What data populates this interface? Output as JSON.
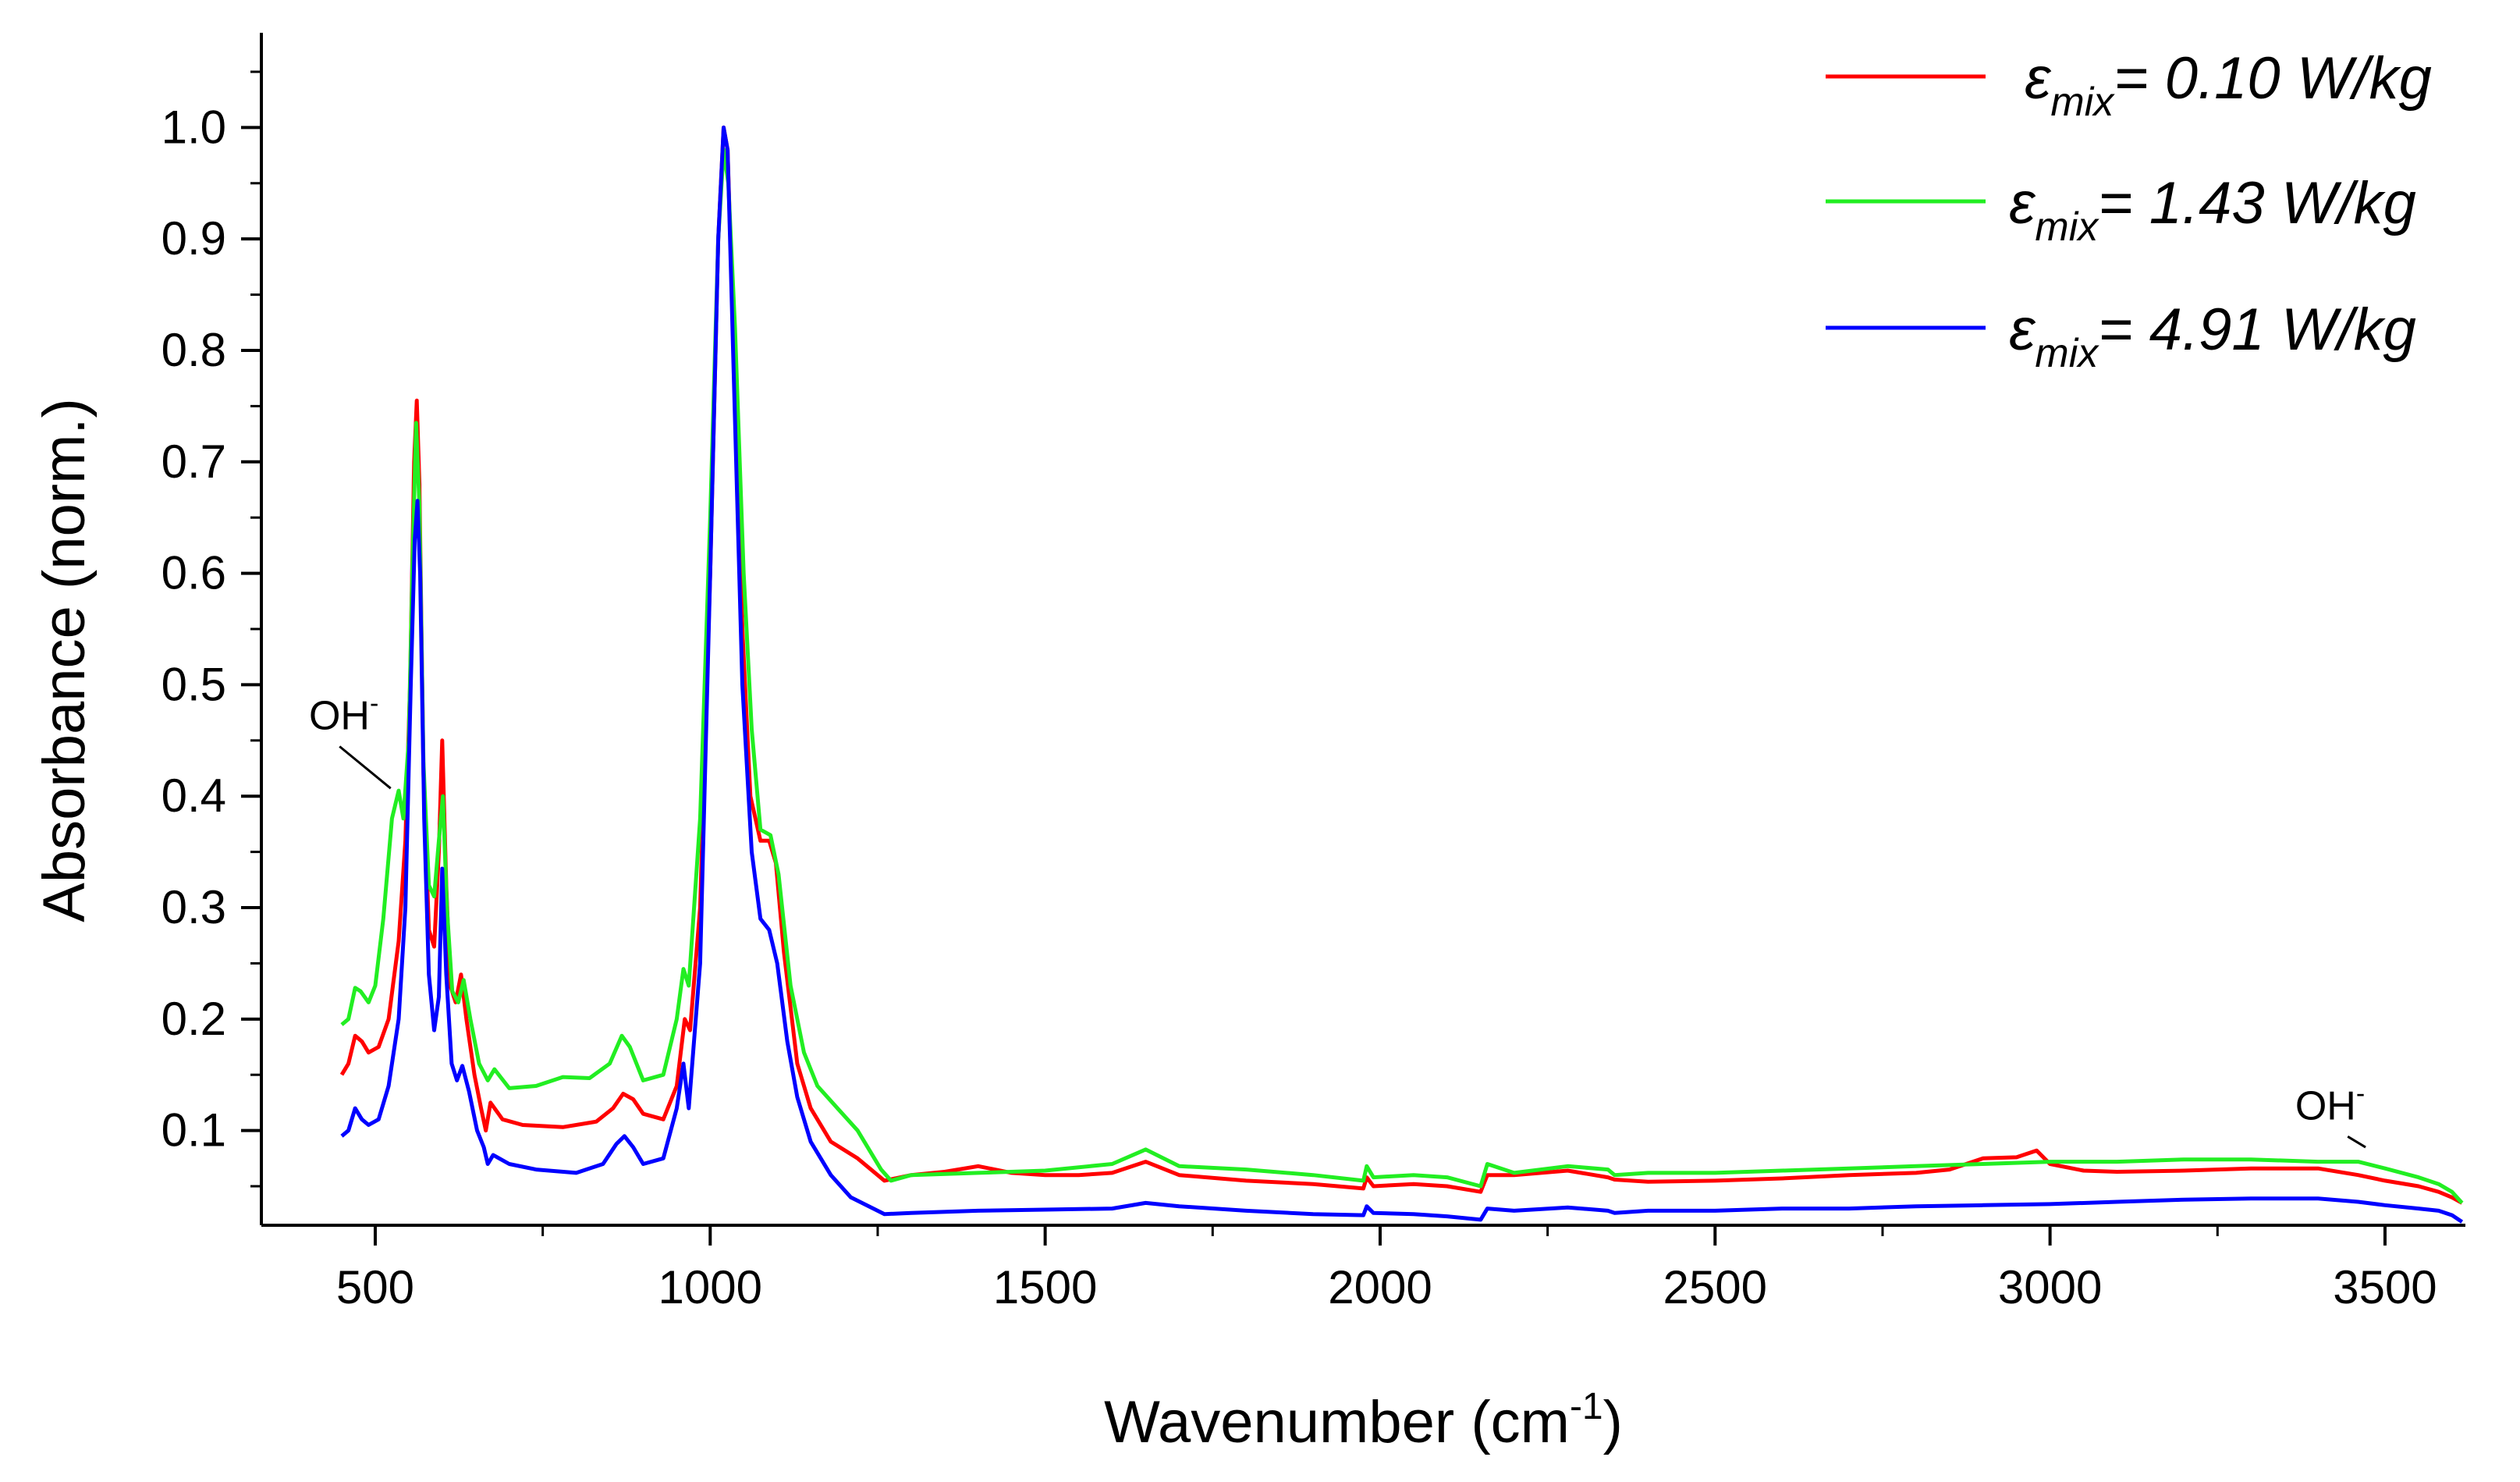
{
  "chart_data": {
    "type": "line",
    "xlabel": "Wavenumber (cm",
    "xlabel_sup": "-1",
    "xlabel_suffix": ")",
    "ylabel": "Absorbance (norm.)",
    "xlim": [
      330,
      3620
    ],
    "ylim": [
      0.015,
      1.085
    ],
    "x_ticks": [
      500,
      1000,
      1500,
      2000,
      2500,
      3000,
      3500
    ],
    "y_ticks": [
      0.1,
      0.2,
      0.3,
      0.4,
      0.5,
      0.6,
      0.7,
      0.8,
      0.9,
      1.0
    ],
    "x_tick_labels": [
      "500",
      "1000",
      "1500",
      "2000",
      "2500",
      "3000",
      "3500"
    ],
    "y_tick_labels": [
      "0.1",
      "0.2",
      "0.3",
      "0.4",
      "0.5",
      "0.6",
      "0.7",
      "0.8",
      "0.9",
      "1.0"
    ],
    "grid": false,
    "legend_position": "top-right",
    "series": [
      {
        "name": "= 0.10 W/kg",
        "legend_symbol": "ε",
        "legend_sub": "mix",
        "color": "#ff0000",
        "points": [
          [
            450,
            0.15
          ],
          [
            460,
            0.16
          ],
          [
            470,
            0.185
          ],
          [
            480,
            0.18
          ],
          [
            490,
            0.17
          ],
          [
            505,
            0.175
          ],
          [
            520,
            0.2
          ],
          [
            535,
            0.27
          ],
          [
            545,
            0.36
          ],
          [
            552,
            0.5
          ],
          [
            558,
            0.7
          ],
          [
            562,
            0.755
          ],
          [
            566,
            0.68
          ],
          [
            572,
            0.42
          ],
          [
            580,
            0.28
          ],
          [
            588,
            0.265
          ],
          [
            595,
            0.35
          ],
          [
            600,
            0.45
          ],
          [
            606,
            0.32
          ],
          [
            612,
            0.23
          ],
          [
            620,
            0.215
          ],
          [
            628,
            0.24
          ],
          [
            636,
            0.2
          ],
          [
            648,
            0.15
          ],
          [
            658,
            0.12
          ],
          [
            665,
            0.1
          ],
          [
            672,
            0.125
          ],
          [
            690,
            0.11
          ],
          [
            720,
            0.105
          ],
          [
            780,
            0.103
          ],
          [
            830,
            0.108
          ],
          [
            855,
            0.12
          ],
          [
            870,
            0.133
          ],
          [
            885,
            0.128
          ],
          [
            900,
            0.115
          ],
          [
            930,
            0.11
          ],
          [
            950,
            0.14
          ],
          [
            962,
            0.2
          ],
          [
            970,
            0.19
          ],
          [
            985,
            0.3
          ],
          [
            1000,
            0.6
          ],
          [
            1012,
            0.9
          ],
          [
            1020,
            1.0
          ],
          [
            1026,
            0.98
          ],
          [
            1035,
            0.8
          ],
          [
            1048,
            0.55
          ],
          [
            1060,
            0.4
          ],
          [
            1075,
            0.36
          ],
          [
            1088,
            0.36
          ],
          [
            1098,
            0.34
          ],
          [
            1110,
            0.26
          ],
          [
            1130,
            0.16
          ],
          [
            1150,
            0.12
          ],
          [
            1180,
            0.09
          ],
          [
            1220,
            0.075
          ],
          [
            1260,
            0.055
          ],
          [
            1300,
            0.06
          ],
          [
            1350,
            0.063
          ],
          [
            1400,
            0.068
          ],
          [
            1450,
            0.062
          ],
          [
            1500,
            0.06
          ],
          [
            1550,
            0.06
          ],
          [
            1600,
            0.062
          ],
          [
            1650,
            0.072
          ],
          [
            1700,
            0.06
          ],
          [
            1800,
            0.055
          ],
          [
            1900,
            0.052
          ],
          [
            1975,
            0.048
          ],
          [
            1980,
            0.058
          ],
          [
            1990,
            0.05
          ],
          [
            2050,
            0.052
          ],
          [
            2100,
            0.05
          ],
          [
            2150,
            0.045
          ],
          [
            2160,
            0.06
          ],
          [
            2200,
            0.06
          ],
          [
            2280,
            0.064
          ],
          [
            2340,
            0.058
          ],
          [
            2350,
            0.056
          ],
          [
            2400,
            0.054
          ],
          [
            2500,
            0.055
          ],
          [
            2600,
            0.057
          ],
          [
            2700,
            0.06
          ],
          [
            2800,
            0.062
          ],
          [
            2850,
            0.065
          ],
          [
            2900,
            0.075
          ],
          [
            2950,
            0.076
          ],
          [
            2980,
            0.082
          ],
          [
            3000,
            0.07
          ],
          [
            3050,
            0.064
          ],
          [
            3100,
            0.063
          ],
          [
            3200,
            0.064
          ],
          [
            3300,
            0.066
          ],
          [
            3400,
            0.066
          ],
          [
            3460,
            0.06
          ],
          [
            3500,
            0.055
          ],
          [
            3550,
            0.05
          ],
          [
            3580,
            0.045
          ],
          [
            3600,
            0.04
          ],
          [
            3615,
            0.035
          ]
        ]
      },
      {
        "name": "= 1.43 W/kg",
        "legend_symbol": "ε",
        "legend_sub": "mix",
        "color": "#22ee22",
        "points": [
          [
            450,
            0.195
          ],
          [
            460,
            0.2
          ],
          [
            470,
            0.228
          ],
          [
            478,
            0.225
          ],
          [
            490,
            0.215
          ],
          [
            500,
            0.23
          ],
          [
            512,
            0.29
          ],
          [
            525,
            0.38
          ],
          [
            535,
            0.405
          ],
          [
            542,
            0.38
          ],
          [
            550,
            0.45
          ],
          [
            556,
            0.62
          ],
          [
            561,
            0.735
          ],
          [
            566,
            0.66
          ],
          [
            572,
            0.43
          ],
          [
            580,
            0.32
          ],
          [
            588,
            0.31
          ],
          [
            595,
            0.36
          ],
          [
            601,
            0.4
          ],
          [
            607,
            0.3
          ],
          [
            615,
            0.225
          ],
          [
            624,
            0.215
          ],
          [
            632,
            0.235
          ],
          [
            642,
            0.2
          ],
          [
            655,
            0.16
          ],
          [
            668,
            0.145
          ],
          [
            678,
            0.155
          ],
          [
            700,
            0.138
          ],
          [
            740,
            0.14
          ],
          [
            780,
            0.148
          ],
          [
            820,
            0.147
          ],
          [
            850,
            0.16
          ],
          [
            868,
            0.185
          ],
          [
            880,
            0.175
          ],
          [
            900,
            0.145
          ],
          [
            930,
            0.15
          ],
          [
            950,
            0.2
          ],
          [
            960,
            0.245
          ],
          [
            968,
            0.23
          ],
          [
            985,
            0.38
          ],
          [
            1000,
            0.65
          ],
          [
            1012,
            0.9
          ],
          [
            1020,
            0.98
          ],
          [
            1027,
            0.95
          ],
          [
            1037,
            0.82
          ],
          [
            1050,
            0.6
          ],
          [
            1062,
            0.46
          ],
          [
            1075,
            0.37
          ],
          [
            1090,
            0.365
          ],
          [
            1102,
            0.33
          ],
          [
            1120,
            0.23
          ],
          [
            1140,
            0.17
          ],
          [
            1160,
            0.14
          ],
          [
            1190,
            0.12
          ],
          [
            1220,
            0.1
          ],
          [
            1255,
            0.065
          ],
          [
            1270,
            0.055
          ],
          [
            1300,
            0.06
          ],
          [
            1400,
            0.062
          ],
          [
            1500,
            0.064
          ],
          [
            1600,
            0.07
          ],
          [
            1650,
            0.083
          ],
          [
            1700,
            0.068
          ],
          [
            1800,
            0.065
          ],
          [
            1900,
            0.06
          ],
          [
            1975,
            0.055
          ],
          [
            1980,
            0.068
          ],
          [
            1990,
            0.058
          ],
          [
            2050,
            0.06
          ],
          [
            2100,
            0.058
          ],
          [
            2150,
            0.05
          ],
          [
            2160,
            0.07
          ],
          [
            2200,
            0.062
          ],
          [
            2280,
            0.068
          ],
          [
            2340,
            0.065
          ],
          [
            2350,
            0.06
          ],
          [
            2400,
            0.062
          ],
          [
            2500,
            0.062
          ],
          [
            2600,
            0.064
          ],
          [
            2700,
            0.066
          ],
          [
            2800,
            0.068
          ],
          [
            2900,
            0.07
          ],
          [
            3000,
            0.072
          ],
          [
            3100,
            0.072
          ],
          [
            3200,
            0.074
          ],
          [
            3300,
            0.074
          ],
          [
            3400,
            0.072
          ],
          [
            3460,
            0.072
          ],
          [
            3500,
            0.066
          ],
          [
            3550,
            0.058
          ],
          [
            3580,
            0.052
          ],
          [
            3600,
            0.045
          ],
          [
            3615,
            0.035
          ]
        ]
      },
      {
        "name": "= 4.91 W/kg",
        "legend_symbol": "ε",
        "legend_sub": "mix",
        "color": "#0000ff",
        "points": [
          [
            450,
            0.095
          ],
          [
            460,
            0.1
          ],
          [
            470,
            0.12
          ],
          [
            480,
            0.11
          ],
          [
            490,
            0.105
          ],
          [
            505,
            0.11
          ],
          [
            520,
            0.14
          ],
          [
            535,
            0.2
          ],
          [
            545,
            0.3
          ],
          [
            553,
            0.5
          ],
          [
            559,
            0.63
          ],
          [
            563,
            0.665
          ],
          [
            567,
            0.6
          ],
          [
            573,
            0.38
          ],
          [
            580,
            0.24
          ],
          [
            588,
            0.19
          ],
          [
            595,
            0.22
          ],
          [
            600,
            0.335
          ],
          [
            606,
            0.24
          ],
          [
            614,
            0.16
          ],
          [
            622,
            0.145
          ],
          [
            630,
            0.158
          ],
          [
            640,
            0.135
          ],
          [
            652,
            0.1
          ],
          [
            662,
            0.085
          ],
          [
            668,
            0.07
          ],
          [
            676,
            0.078
          ],
          [
            700,
            0.07
          ],
          [
            740,
            0.065
          ],
          [
            800,
            0.062
          ],
          [
            840,
            0.07
          ],
          [
            860,
            0.088
          ],
          [
            872,
            0.095
          ],
          [
            885,
            0.085
          ],
          [
            900,
            0.07
          ],
          [
            930,
            0.075
          ],
          [
            950,
            0.12
          ],
          [
            960,
            0.16
          ],
          [
            968,
            0.12
          ],
          [
            985,
            0.25
          ],
          [
            1000,
            0.6
          ],
          [
            1012,
            0.9
          ],
          [
            1020,
            1.0
          ],
          [
            1026,
            0.98
          ],
          [
            1035,
            0.78
          ],
          [
            1048,
            0.5
          ],
          [
            1062,
            0.35
          ],
          [
            1075,
            0.29
          ],
          [
            1088,
            0.28
          ],
          [
            1100,
            0.25
          ],
          [
            1115,
            0.18
          ],
          [
            1130,
            0.13
          ],
          [
            1150,
            0.09
          ],
          [
            1180,
            0.06
          ],
          [
            1210,
            0.04
          ],
          [
            1260,
            0.025
          ],
          [
            1300,
            0.026
          ],
          [
            1400,
            0.028
          ],
          [
            1500,
            0.029
          ],
          [
            1600,
            0.03
          ],
          [
            1650,
            0.035
          ],
          [
            1700,
            0.032
          ],
          [
            1800,
            0.028
          ],
          [
            1900,
            0.025
          ],
          [
            1975,
            0.024
          ],
          [
            1980,
            0.032
          ],
          [
            1990,
            0.026
          ],
          [
            2050,
            0.025
          ],
          [
            2100,
            0.023
          ],
          [
            2150,
            0.02
          ],
          [
            2160,
            0.03
          ],
          [
            2200,
            0.028
          ],
          [
            2280,
            0.031
          ],
          [
            2340,
            0.028
          ],
          [
            2350,
            0.026
          ],
          [
            2400,
            0.028
          ],
          [
            2500,
            0.028
          ],
          [
            2600,
            0.03
          ],
          [
            2700,
            0.03
          ],
          [
            2800,
            0.032
          ],
          [
            2900,
            0.033
          ],
          [
            3000,
            0.034
          ],
          [
            3100,
            0.036
          ],
          [
            3200,
            0.038
          ],
          [
            3300,
            0.039
          ],
          [
            3400,
            0.039
          ],
          [
            3460,
            0.036
          ],
          [
            3500,
            0.033
          ],
          [
            3550,
            0.03
          ],
          [
            3580,
            0.028
          ],
          [
            3600,
            0.024
          ],
          [
            3615,
            0.018
          ]
        ]
      }
    ],
    "annotations": [
      {
        "text": "OH",
        "sup": "-",
        "x": 505,
        "y": 0.46,
        "point_to": [
          530,
          0.4
        ]
      },
      {
        "text": "OH",
        "sup": "-",
        "x": 3470,
        "y": 0.11,
        "point_to": [
          3478,
          0.078
        ]
      }
    ]
  }
}
